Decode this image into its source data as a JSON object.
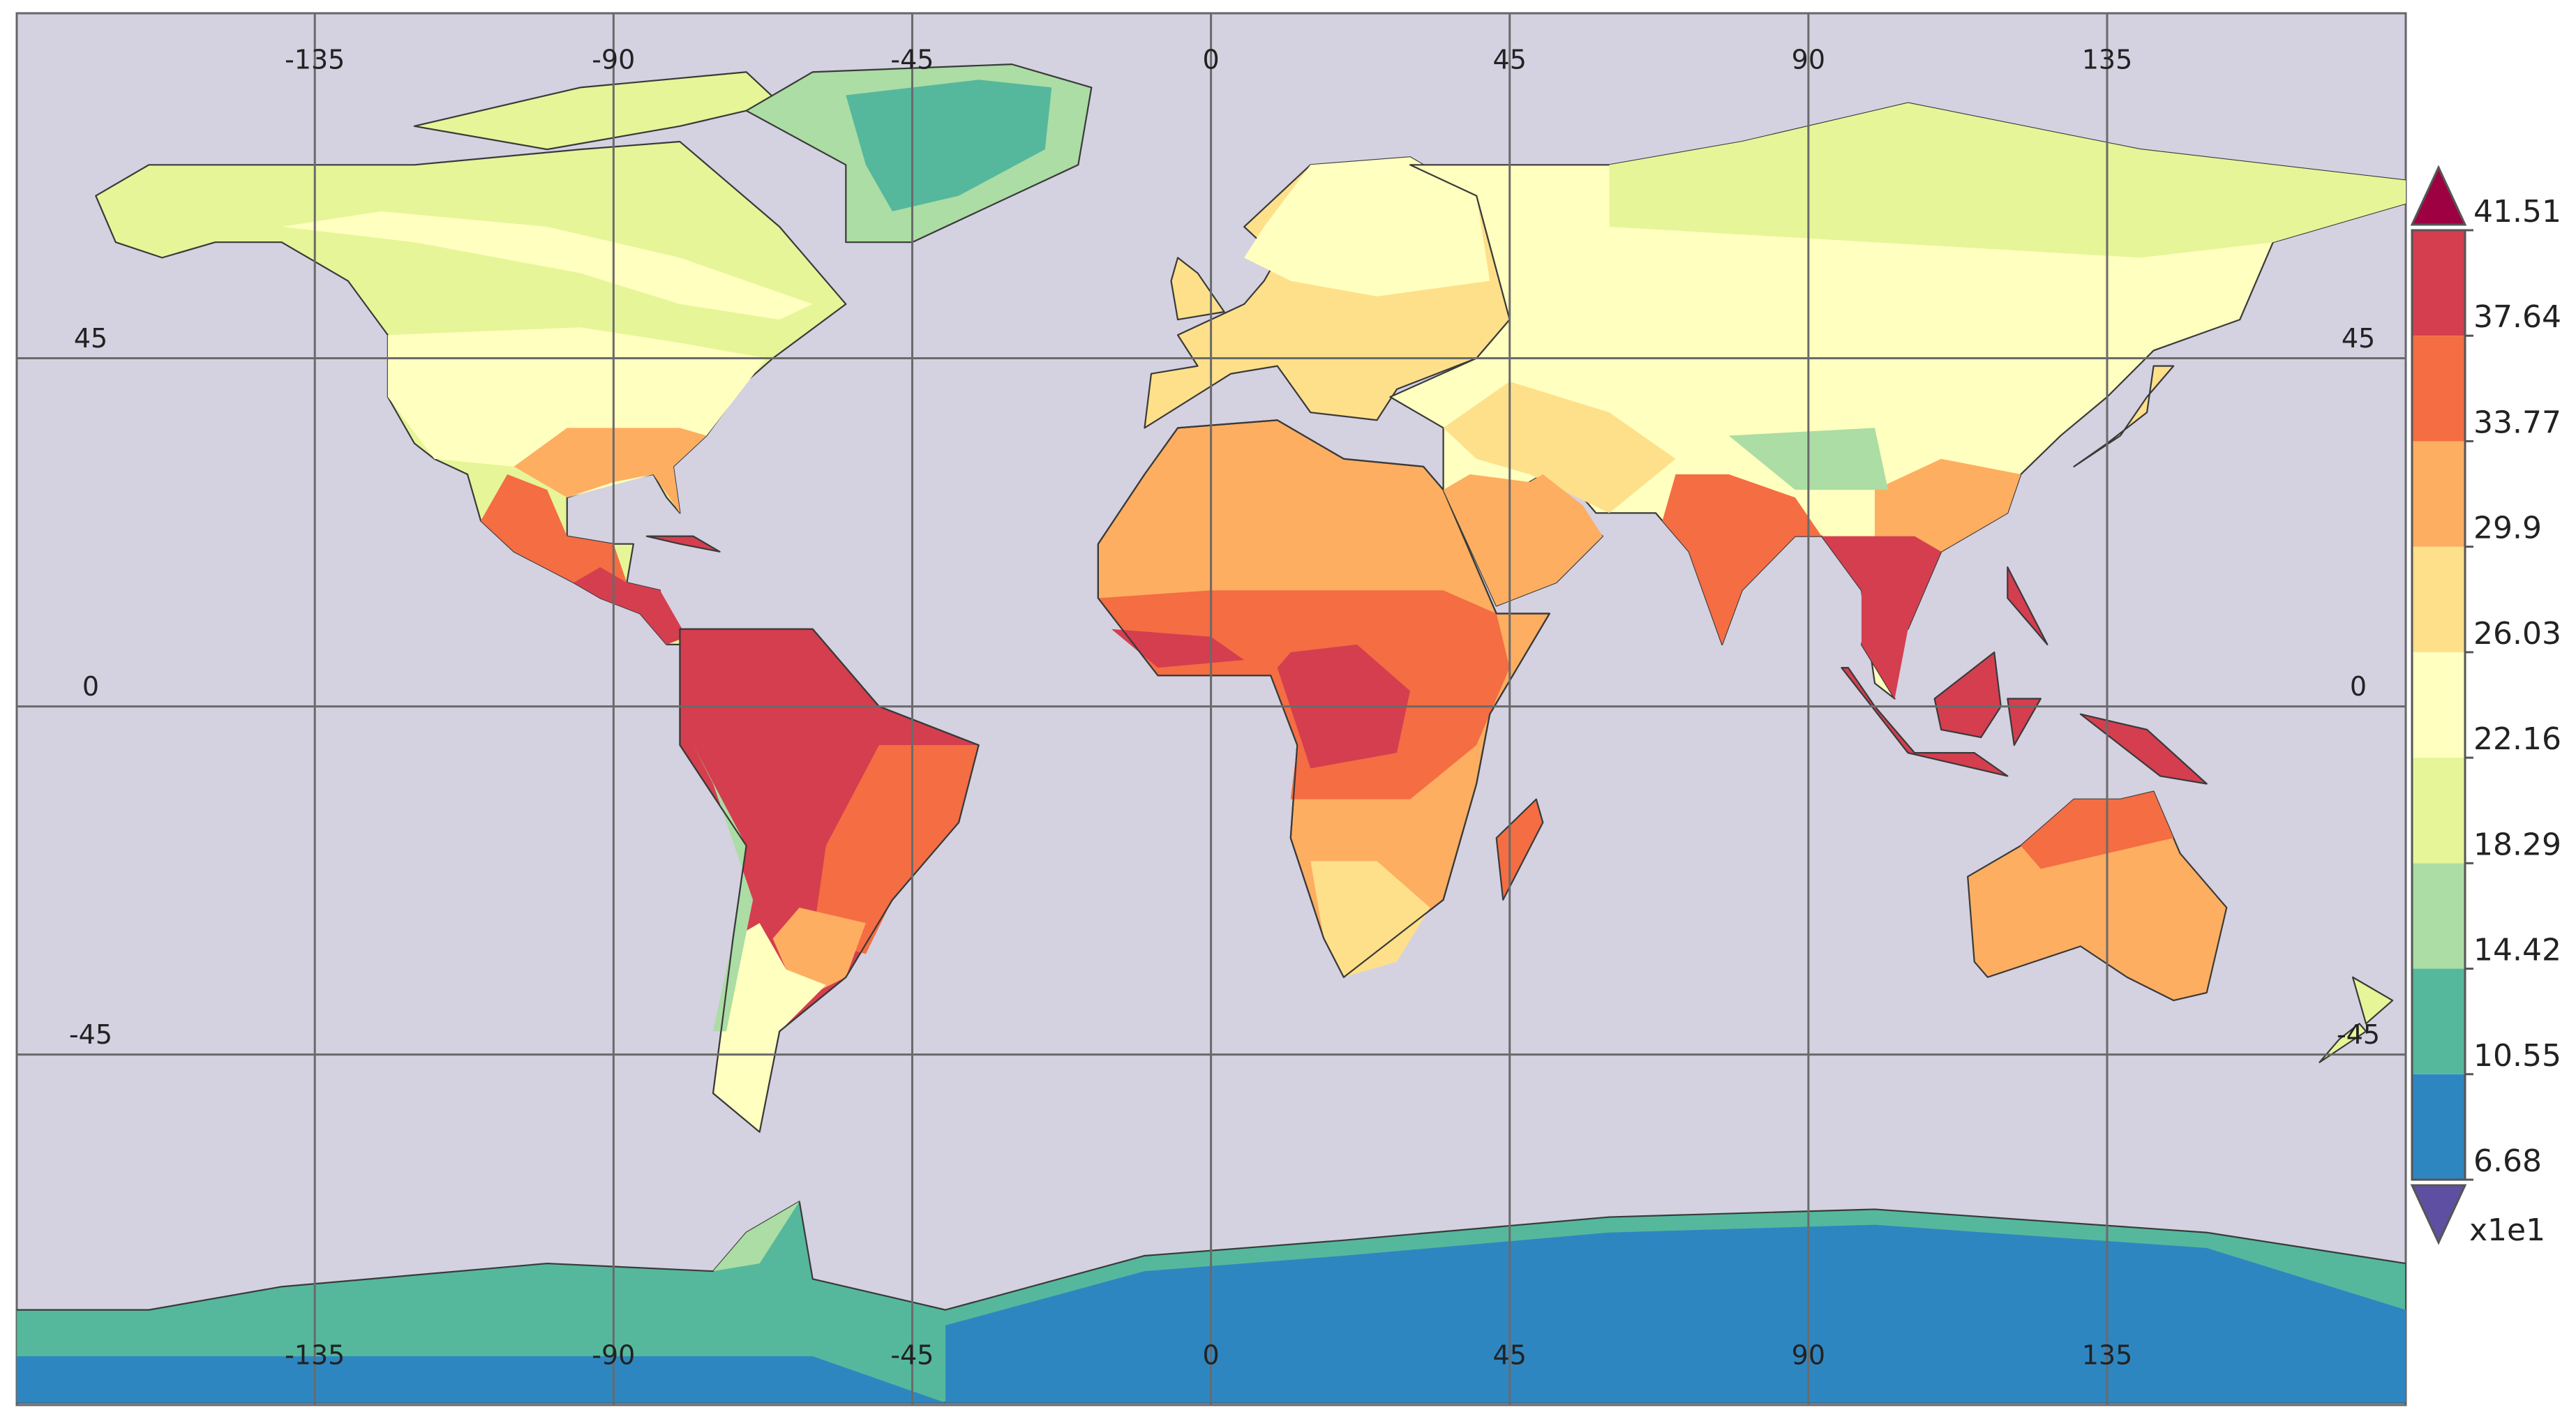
{
  "map": {
    "lon_ticks": [
      -135,
      -90,
      -45,
      0,
      45,
      90,
      135
    ],
    "lat_ticks": [
      45,
      0,
      -45
    ]
  },
  "colorbar": {
    "levels": [
      6.68,
      10.55,
      14.42,
      18.29,
      22.16,
      26.03,
      29.9,
      33.77,
      37.64,
      41.51
    ],
    "colors": [
      "#2e86c1",
      "#55b89c",
      "#abdda4",
      "#e6f598",
      "#ffffbf",
      "#fee08b",
      "#fdae61",
      "#f46d43",
      "#d53e4f"
    ],
    "under_color": "#5e4fa2",
    "over_color": "#9e0142",
    "multiplier": "x1e1"
  }
}
